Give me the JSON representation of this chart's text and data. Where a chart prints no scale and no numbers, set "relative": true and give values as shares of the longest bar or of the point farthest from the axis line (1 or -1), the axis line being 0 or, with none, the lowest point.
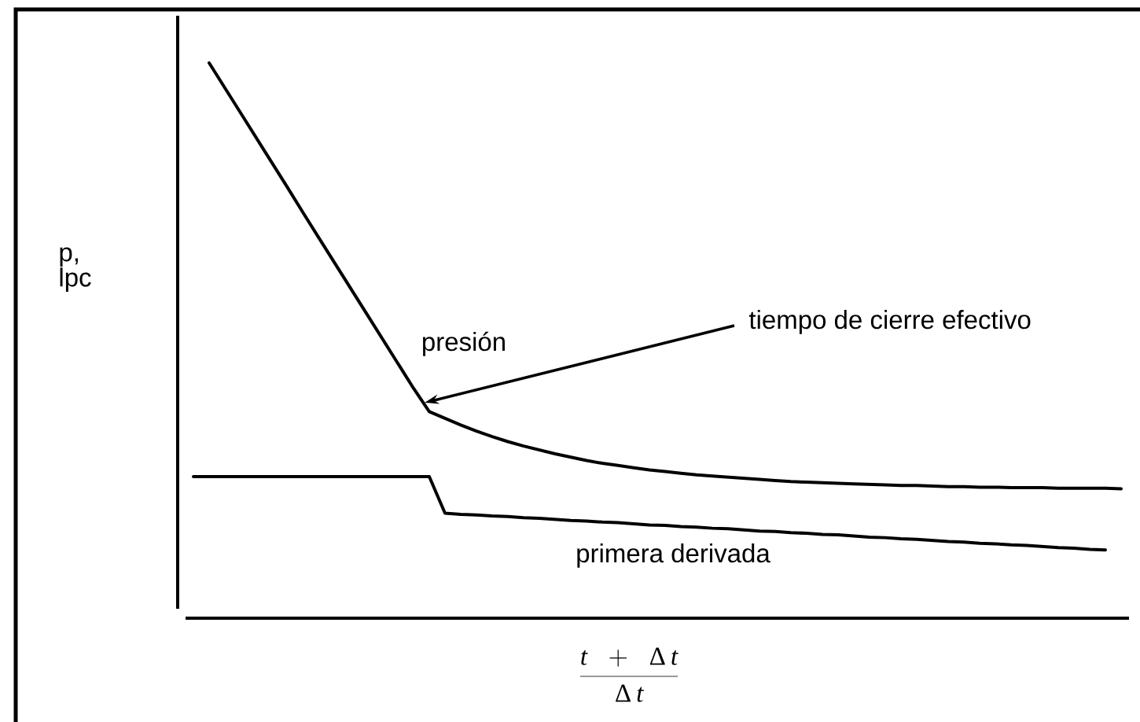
{
  "chart_data": {
    "type": "line",
    "relative": true,
    "xlabel": "\\frac{t\\;\\;+\\;\\;\\Delta\\, t}{\\Delta\\, t}",
    "ylabel": "p, lpc",
    "annotations": [
      "tiempo de cierre efectivo"
    ],
    "line_style": "solid",
    "categories": [
      null,
      null,
      null,
      null,
      null,
      null,
      null,
      null,
      null,
      null,
      null,
      null,
      null,
      null,
      null,
      null,
      null,
      null,
      null,
      null,
      null,
      null,
      null,
      null,
      null,
      null,
      null,
      null,
      null,
      null,
      null,
      null,
      null,
      null,
      null,
      null,
      null,
      null,
      null,
      null,
      null,
      null,
      null,
      null,
      null,
      null,
      null,
      null,
      null,
      null,
      null,
      null,
      null,
      null,
      null,
      null,
      null,
      null,
      null,
      null
    ],
    "series": [
      {
        "name": "presión",
        "color": "#000000",
        "values": [
          null,
          1.0,
          0.955,
          0.91,
          0.865,
          0.82,
          0.775,
          0.729,
          0.684,
          0.639,
          0.594,
          0.549,
          0.504,
          0.459,
          0.414,
          0.372,
          0.36,
          0.348,
          0.337,
          0.327,
          0.318,
          0.31,
          0.303,
          0.296,
          0.29,
          0.284,
          0.279,
          0.275,
          0.271,
          0.267,
          0.264,
          0.261,
          0.258,
          0.256,
          0.254,
          0.252,
          0.25,
          0.248,
          0.246,
          0.245,
          0.244,
          0.243,
          0.242,
          0.241,
          0.24,
          0.239,
          0.239,
          0.238,
          0.237,
          0.237,
          0.236,
          0.236,
          0.235,
          0.235,
          0.235,
          0.234,
          0.234,
          0.234,
          0.234,
          0.233
        ]
      },
      {
        "name": "primera derivada",
        "color": "#000000",
        "values": [
          0.255,
          0.255,
          0.255,
          0.255,
          0.255,
          0.255,
          0.255,
          0.255,
          0.255,
          0.255,
          0.255,
          0.255,
          0.255,
          0.255,
          0.255,
          0.255,
          0.189,
          0.187,
          0.186,
          0.184,
          0.183,
          0.181,
          0.18,
          0.178,
          0.176,
          0.175,
          0.173,
          0.172,
          0.17,
          0.168,
          0.167,
          0.165,
          0.164,
          0.162,
          0.161,
          0.159,
          0.157,
          0.156,
          0.154,
          0.153,
          0.151,
          0.15,
          0.148,
          0.146,
          0.145,
          0.143,
          0.142,
          0.14,
          0.138,
          0.137,
          0.135,
          0.134,
          0.132,
          0.131,
          0.129,
          0.127,
          0.126,
          0.124,
          0.123,
          null
        ]
      }
    ]
  }
}
